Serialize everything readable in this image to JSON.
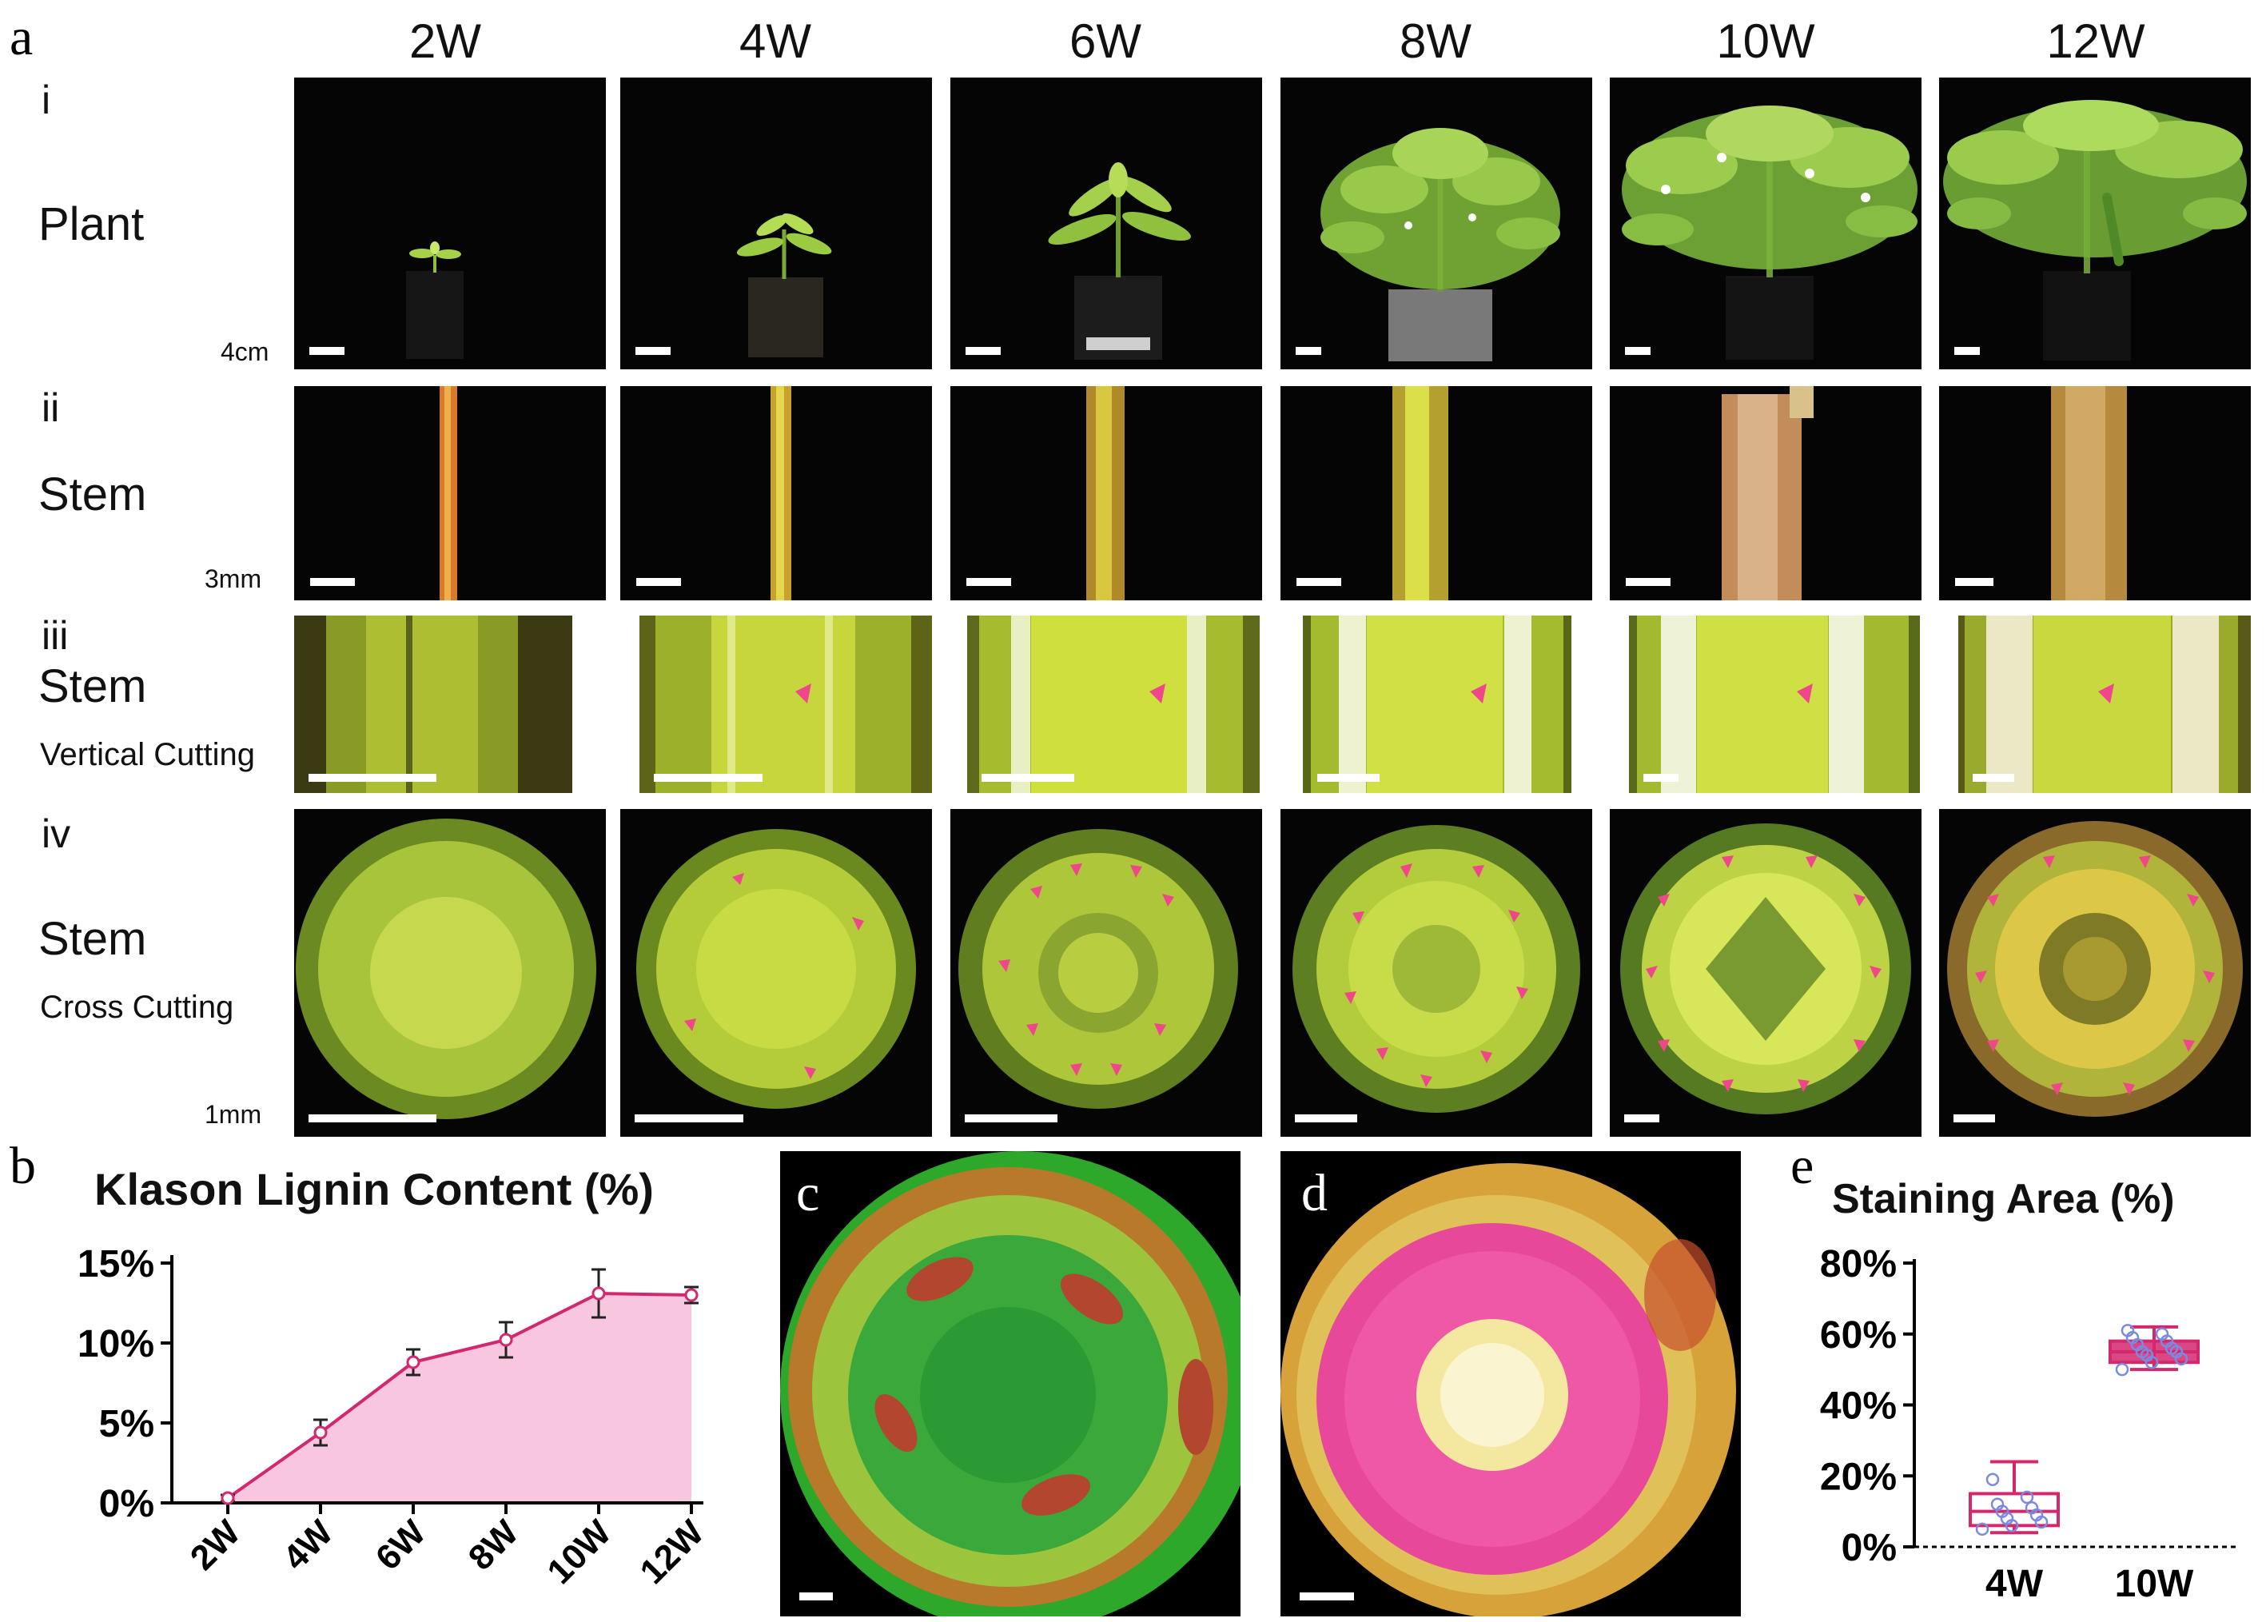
{
  "figure": {
    "panel_labels": [
      "a",
      "b",
      "c",
      "d",
      "e"
    ],
    "weeks": [
      "2W",
      "4W",
      "6W",
      "8W",
      "10W",
      "12W"
    ],
    "rows": [
      {
        "roman": "i",
        "name": "Plant",
        "sub": "",
        "scale": "4cm"
      },
      {
        "roman": "ii",
        "name": "Stem",
        "sub": "",
        "scale": "3mm"
      },
      {
        "roman": "iii",
        "name": "Stem",
        "sub": "Vertical Cutting",
        "scale": ""
      },
      {
        "roman": "iv",
        "name": "Stem",
        "sub": "Cross Cutting",
        "scale": "1mm"
      }
    ]
  },
  "chart_data": [
    {
      "type": "area",
      "title": "Klason Lignin Content (%)",
      "categories": [
        "2W",
        "4W",
        "6W",
        "8W",
        "10W",
        "12W"
      ],
      "values": [
        0.3,
        4.4,
        8.8,
        10.2,
        13.1,
        13.0
      ],
      "errors": [
        0.2,
        0.8,
        0.8,
        1.1,
        1.5,
        0.5
      ],
      "y_ticks": [
        "0%",
        "5%",
        "10%",
        "15%"
      ],
      "ylim": [
        0,
        15
      ],
      "color": "#d4286e",
      "fill": "#f9c6df"
    },
    {
      "type": "box",
      "title": "Staining Area (%)",
      "categories": [
        "4W",
        "10W"
      ],
      "boxes": [
        {
          "min": 4,
          "q1": 6,
          "median": 10,
          "q3": 15,
          "max": 24,
          "points": [
            5,
            6,
            7,
            8,
            9,
            10,
            11,
            12,
            14,
            19
          ]
        },
        {
          "min": 50,
          "q1": 52,
          "median": 55,
          "q3": 58,
          "max": 62,
          "points": [
            50,
            52,
            53,
            54,
            55,
            55,
            56,
            57,
            58,
            59,
            60,
            61
          ]
        }
      ],
      "y_ticks": [
        "0%",
        "20%",
        "40%",
        "60%",
        "80%"
      ],
      "ylim": [
        0,
        80
      ],
      "color": "#d4286e",
      "point_color": "#7a8ae0"
    }
  ]
}
